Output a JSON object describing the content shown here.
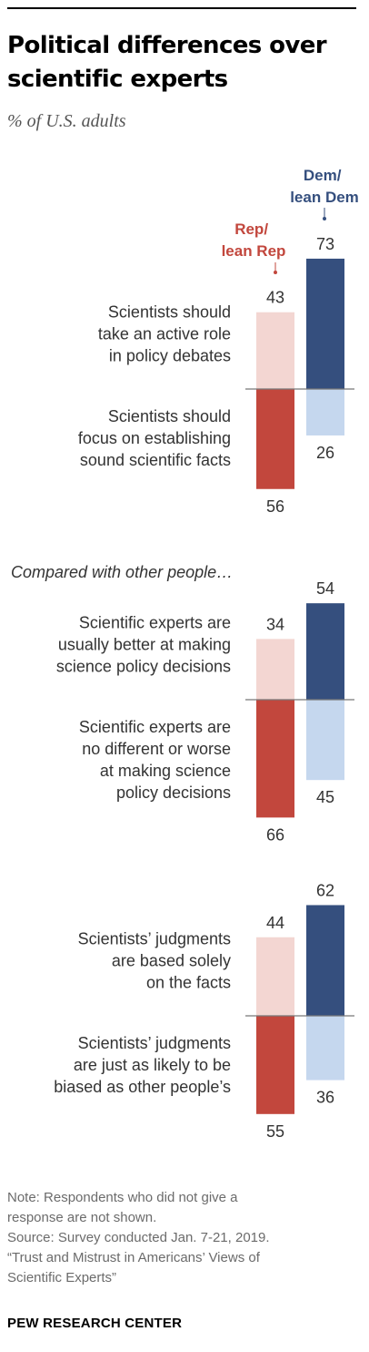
{
  "header": {
    "title_lines": [
      "Political differences over",
      "scientific experts"
    ],
    "subtitle": "% of U.S. adults"
  },
  "legend": {
    "rep_lines": [
      "Rep/",
      "lean Rep"
    ],
    "dem_lines": [
      "Dem/",
      "lean Dem"
    ]
  },
  "colors": {
    "rep_dark": "#c2473d",
    "rep_light": "#f3d6d2",
    "dem_dark": "#354f7e",
    "dem_light": "#c5d7ee",
    "rep_text": "#c2473d",
    "dem_text": "#354f7e"
  },
  "chart_data": {
    "type": "bar",
    "series_names": [
      "Rep/lean Rep",
      "Dem/lean Dem"
    ],
    "panels": [
      {
        "intro": "",
        "top": {
          "label_lines": [
            "Scientists should",
            "take an active role",
            "in policy debates"
          ],
          "values": [
            43,
            73
          ]
        },
        "bottom": {
          "label_lines": [
            "Scientists should",
            "focus on establishing",
            "sound scientific facts"
          ],
          "values": [
            56,
            26
          ]
        }
      },
      {
        "intro": "Compared with other people…",
        "top": {
          "label_lines": [
            "Scientific experts are",
            "usually better at making",
            "science policy decisions"
          ],
          "values": [
            34,
            54
          ]
        },
        "bottom": {
          "label_lines": [
            "Scientific experts are",
            "no different or worse",
            "at making science",
            "policy decisions"
          ],
          "values": [
            66,
            45
          ]
        }
      },
      {
        "intro": "",
        "top": {
          "label_lines": [
            "Scientists’ judgments",
            "are based solely",
            "on the facts"
          ],
          "values": [
            44,
            62
          ]
        },
        "bottom": {
          "label_lines": [
            "Scientists’ judgments",
            "are just as likely to be",
            "biased as other people’s"
          ],
          "values": [
            55,
            36
          ]
        }
      }
    ]
  },
  "notes": [
    "Note: Respondents who did not give a",
    "response are not shown.",
    "Source: Survey conducted Jan. 7-21, 2019.",
    "“Trust and Mistrust in Americans’ Views of",
    "Scientific Experts”"
  ],
  "footer": "PEW RESEARCH CENTER"
}
